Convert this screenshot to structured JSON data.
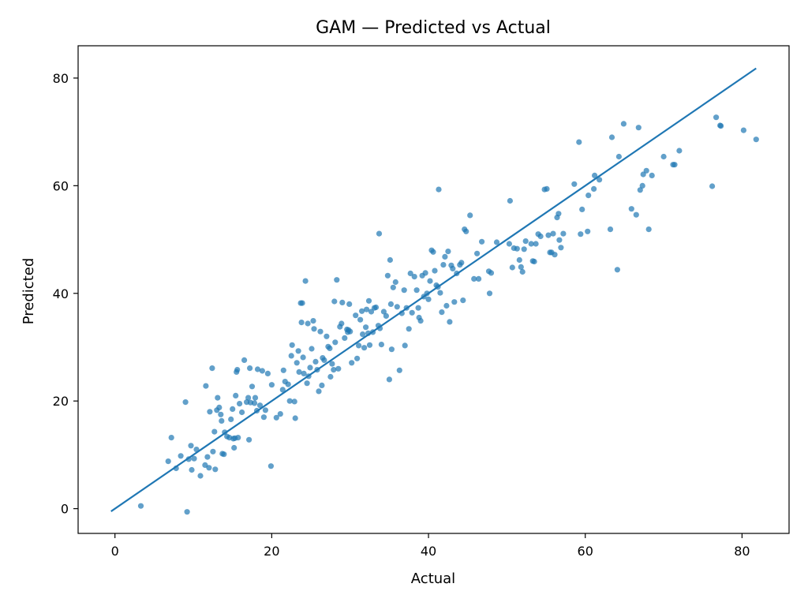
{
  "chart_data": {
    "type": "scatter",
    "title": "GAM — Predicted vs Actual",
    "xlabel": "Actual",
    "ylabel": "Predicted",
    "xlim": [
      -4.7,
      86.0
    ],
    "ylim": [
      -4.6,
      86.0
    ],
    "xticks": [
      0,
      20,
      40,
      60,
      80
    ],
    "yticks": [
      0,
      20,
      40,
      60,
      80
    ],
    "grid": false,
    "legend": "none",
    "colors": {
      "points": "#1f77b4",
      "reference_line": "#1f77b4"
    },
    "reference_line": {
      "x": [
        -0.5,
        81.8
      ],
      "y": [
        -0.5,
        81.8
      ]
    },
    "series": [
      {
        "points": [
          [
            3.3,
            0.5
          ],
          [
            9.2,
            -0.6
          ],
          [
            6.8,
            8.8
          ],
          [
            7.2,
            13.2
          ],
          [
            7.8,
            7.5
          ],
          [
            8.4,
            9.8
          ],
          [
            9.0,
            19.8
          ],
          [
            9.4,
            9.2
          ],
          [
            9.7,
            11.7
          ],
          [
            9.8,
            7.2
          ],
          [
            10.1,
            9.3
          ],
          [
            10.4,
            11.0
          ],
          [
            10.9,
            6.1
          ],
          [
            11.5,
            8.1
          ],
          [
            11.6,
            22.8
          ],
          [
            11.8,
            9.6
          ],
          [
            12.0,
            7.6
          ],
          [
            12.1,
            18.0
          ],
          [
            12.4,
            26.1
          ],
          [
            12.5,
            10.6
          ],
          [
            12.7,
            14.3
          ],
          [
            12.8,
            7.3
          ],
          [
            13.0,
            18.3
          ],
          [
            13.1,
            20.6
          ],
          [
            13.3,
            18.8
          ],
          [
            13.5,
            17.5
          ],
          [
            13.6,
            16.3
          ],
          [
            13.7,
            10.2
          ],
          [
            13.9,
            10.1
          ],
          [
            14.0,
            14.2
          ],
          [
            14.3,
            13.4
          ],
          [
            14.6,
            13.2
          ],
          [
            14.8,
            16.6
          ],
          [
            15.0,
            18.5
          ],
          [
            15.1,
            13.0
          ],
          [
            15.2,
            11.3
          ],
          [
            15.3,
            13.1
          ],
          [
            15.4,
            21.0
          ],
          [
            15.5,
            25.4
          ],
          [
            15.6,
            25.8
          ],
          [
            15.7,
            13.2
          ],
          [
            15.9,
            19.5
          ],
          [
            16.2,
            17.9
          ],
          [
            16.5,
            27.6
          ],
          [
            16.8,
            19.8
          ],
          [
            17.0,
            20.6
          ],
          [
            17.1,
            12.8
          ],
          [
            17.2,
            26.1
          ],
          [
            17.3,
            19.7
          ],
          [
            17.5,
            22.7
          ],
          [
            17.8,
            19.6
          ],
          [
            17.9,
            20.6
          ],
          [
            18.1,
            18.2
          ],
          [
            18.2,
            25.9
          ],
          [
            18.5,
            19.2
          ],
          [
            18.8,
            25.6
          ],
          [
            19.0,
            17.0
          ],
          [
            19.2,
            18.3
          ],
          [
            19.5,
            25.1
          ],
          [
            19.9,
            7.9
          ],
          [
            20.0,
            23.0
          ],
          [
            20.6,
            16.9
          ],
          [
            21.1,
            17.6
          ],
          [
            21.4,
            22.1
          ],
          [
            21.5,
            25.7
          ],
          [
            21.7,
            23.6
          ],
          [
            22.1,
            23.1
          ],
          [
            22.3,
            20.0
          ],
          [
            22.5,
            28.4
          ],
          [
            22.6,
            30.4
          ],
          [
            22.9,
            19.9
          ],
          [
            23.0,
            16.8
          ],
          [
            23.2,
            27.1
          ],
          [
            23.4,
            29.3
          ],
          [
            23.5,
            25.4
          ],
          [
            23.7,
            38.2
          ],
          [
            23.8,
            34.6
          ],
          [
            23.9,
            38.2
          ],
          [
            24.0,
            28.1
          ],
          [
            24.1,
            25.1
          ],
          [
            24.3,
            42.3
          ],
          [
            24.5,
            23.3
          ],
          [
            24.6,
            34.4
          ],
          [
            24.7,
            24.6
          ],
          [
            24.9,
            26.2
          ],
          [
            25.1,
            29.7
          ],
          [
            25.3,
            34.9
          ],
          [
            25.4,
            33.4
          ],
          [
            25.6,
            27.3
          ],
          [
            25.8,
            25.8
          ],
          [
            26.0,
            21.8
          ],
          [
            26.2,
            32.9
          ],
          [
            26.4,
            22.9
          ],
          [
            26.5,
            28.0
          ],
          [
            26.7,
            27.6
          ],
          [
            27.0,
            32.0
          ],
          [
            27.2,
            30.1
          ],
          [
            27.4,
            29.8
          ],
          [
            27.5,
            24.5
          ],
          [
            27.7,
            26.9
          ],
          [
            27.9,
            25.8
          ],
          [
            28.0,
            38.5
          ],
          [
            28.1,
            30.9
          ],
          [
            28.3,
            42.5
          ],
          [
            28.5,
            26.0
          ],
          [
            28.7,
            33.8
          ],
          [
            28.9,
            34.4
          ],
          [
            29.0,
            38.3
          ],
          [
            29.3,
            31.7
          ],
          [
            29.6,
            33.3
          ],
          [
            29.7,
            32.8
          ],
          [
            29.8,
            33.2
          ],
          [
            29.9,
            38.0
          ],
          [
            30.0,
            32.9
          ],
          [
            30.2,
            27.1
          ],
          [
            30.7,
            35.9
          ],
          [
            30.9,
            27.9
          ],
          [
            31.1,
            30.3
          ],
          [
            31.3,
            35.1
          ],
          [
            31.5,
            36.7
          ],
          [
            31.6,
            32.4
          ],
          [
            31.8,
            29.9
          ],
          [
            32.0,
            33.7
          ],
          [
            32.1,
            37.0
          ],
          [
            32.3,
            32.6
          ],
          [
            32.4,
            38.6
          ],
          [
            32.5,
            30.4
          ],
          [
            32.7,
            36.6
          ],
          [
            32.9,
            32.8
          ],
          [
            33.1,
            37.3
          ],
          [
            33.3,
            37.4
          ],
          [
            33.6,
            34.0
          ],
          [
            33.7,
            51.1
          ],
          [
            33.8,
            33.5
          ],
          [
            34.0,
            30.5
          ],
          [
            34.3,
            36.6
          ],
          [
            34.6,
            35.8
          ],
          [
            34.8,
            43.3
          ],
          [
            35.0,
            24.0
          ],
          [
            35.1,
            46.2
          ],
          [
            35.2,
            38.0
          ],
          [
            35.3,
            29.6
          ],
          [
            35.5,
            41.1
          ],
          [
            35.8,
            42.1
          ],
          [
            36.0,
            37.5
          ],
          [
            36.3,
            25.7
          ],
          [
            36.6,
            36.3
          ],
          [
            36.9,
            40.6
          ],
          [
            37.0,
            30.3
          ],
          [
            37.2,
            37.3
          ],
          [
            37.5,
            33.4
          ],
          [
            37.7,
            43.7
          ],
          [
            37.9,
            36.4
          ],
          [
            38.2,
            43.1
          ],
          [
            38.5,
            40.6
          ],
          [
            38.7,
            37.3
          ],
          [
            38.8,
            35.5
          ],
          [
            39.0,
            34.9
          ],
          [
            39.2,
            43.3
          ],
          [
            39.4,
            39.4
          ],
          [
            39.6,
            43.8
          ],
          [
            39.8,
            40.0
          ],
          [
            40.0,
            38.9
          ],
          [
            40.2,
            42.3
          ],
          [
            40.4,
            48.0
          ],
          [
            40.6,
            47.7
          ],
          [
            40.8,
            44.2
          ],
          [
            41.0,
            41.5
          ],
          [
            41.2,
            41.2
          ],
          [
            41.3,
            59.3
          ],
          [
            41.5,
            40.1
          ],
          [
            41.7,
            36.5
          ],
          [
            41.9,
            45.3
          ],
          [
            42.1,
            46.8
          ],
          [
            42.3,
            37.7
          ],
          [
            42.5,
            47.8
          ],
          [
            42.7,
            34.7
          ],
          [
            42.9,
            45.2
          ],
          [
            43.1,
            44.6
          ],
          [
            43.3,
            38.4
          ],
          [
            43.6,
            43.7
          ],
          [
            44.0,
            45.3
          ],
          [
            44.2,
            45.7
          ],
          [
            44.4,
            38.7
          ],
          [
            44.6,
            51.9
          ],
          [
            44.8,
            51.5
          ],
          [
            45.3,
            54.5
          ],
          [
            45.8,
            42.7
          ],
          [
            46.2,
            47.4
          ],
          [
            46.4,
            42.7
          ],
          [
            46.8,
            49.6
          ],
          [
            47.7,
            44.1
          ],
          [
            47.8,
            40.0
          ],
          [
            48.0,
            43.8
          ],
          [
            48.7,
            49.5
          ],
          [
            50.3,
            49.2
          ],
          [
            50.4,
            57.2
          ],
          [
            50.7,
            44.8
          ],
          [
            50.9,
            48.4
          ],
          [
            51.3,
            48.3
          ],
          [
            51.6,
            46.2
          ],
          [
            51.8,
            44.9
          ],
          [
            52.0,
            44.0
          ],
          [
            52.2,
            48.2
          ],
          [
            52.4,
            49.7
          ],
          [
            53.1,
            49.2
          ],
          [
            53.3,
            46.0
          ],
          [
            53.5,
            45.9
          ],
          [
            53.7,
            49.2
          ],
          [
            54.0,
            51.0
          ],
          [
            54.3,
            50.6
          ],
          [
            54.8,
            59.3
          ],
          [
            55.1,
            59.4
          ],
          [
            55.3,
            50.8
          ],
          [
            55.5,
            47.6
          ],
          [
            55.7,
            47.6
          ],
          [
            55.9,
            51.1
          ],
          [
            56.1,
            47.2
          ],
          [
            56.4,
            54.1
          ],
          [
            56.6,
            54.8
          ],
          [
            56.7,
            49.9
          ],
          [
            56.9,
            48.5
          ],
          [
            57.2,
            51.1
          ],
          [
            58.6,
            60.3
          ],
          [
            59.2,
            68.1
          ],
          [
            59.4,
            51.0
          ],
          [
            59.6,
            55.6
          ],
          [
            60.3,
            51.5
          ],
          [
            60.4,
            58.2
          ],
          [
            61.1,
            59.4
          ],
          [
            61.2,
            61.9
          ],
          [
            61.8,
            61.1
          ],
          [
            63.2,
            51.9
          ],
          [
            63.4,
            69.0
          ],
          [
            64.1,
            44.4
          ],
          [
            64.3,
            65.4
          ],
          [
            64.9,
            71.5
          ],
          [
            65.9,
            55.7
          ],
          [
            66.5,
            54.6
          ],
          [
            66.8,
            70.8
          ],
          [
            67.0,
            59.2
          ],
          [
            67.3,
            60.0
          ],
          [
            67.4,
            62.1
          ],
          [
            67.8,
            62.8
          ],
          [
            68.1,
            51.9
          ],
          [
            68.5,
            61.9
          ],
          [
            70.0,
            65.4
          ],
          [
            71.2,
            63.9
          ],
          [
            71.4,
            63.9
          ],
          [
            72.0,
            66.5
          ],
          [
            76.2,
            59.9
          ],
          [
            76.7,
            72.7
          ],
          [
            77.2,
            71.2
          ],
          [
            77.3,
            71.1
          ],
          [
            80.2,
            70.3
          ],
          [
            81.8,
            68.6
          ]
        ]
      }
    ]
  }
}
